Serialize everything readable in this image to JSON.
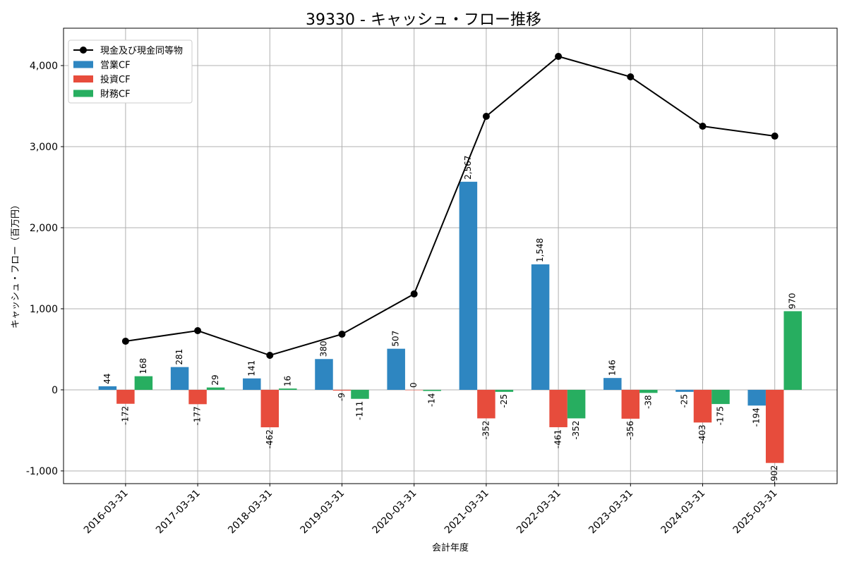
{
  "chart_data": {
    "type": "bar",
    "title": "39330 - キャッシュ・フロー推移",
    "xlabel": "会計年度",
    "ylabel": "キャッシュ・フロー（百万円）",
    "ylim": [
      -1157,
      4461
    ],
    "yticks": [
      -1000,
      0,
      1000,
      2000,
      3000,
      4000
    ],
    "ytick_labels": [
      "-1,000",
      "0",
      "1,000",
      "2,000",
      "3,000",
      "4,000"
    ],
    "grid": true,
    "legend_position": "top-left",
    "categories": [
      "2016-03-31",
      "2017-03-31",
      "2018-03-31",
      "2019-03-31",
      "2020-03-31",
      "2021-03-31",
      "2022-03-31",
      "2023-03-31",
      "2024-03-31",
      "2025-03-31"
    ],
    "series": [
      {
        "name": "営業CF",
        "type": "bar",
        "color": "#2e86c1",
        "values": [
          44,
          281,
          141,
          380,
          507,
          2567,
          1548,
          146,
          -25,
          -194
        ],
        "labels": [
          "44",
          "281",
          "141",
          "380",
          "507",
          "2,567",
          "1,548",
          "146",
          "-25",
          "-194"
        ]
      },
      {
        "name": "投資CF",
        "type": "bar",
        "color": "#e74c3c",
        "values": [
          -172,
          -177,
          -462,
          -9,
          0,
          -352,
          -461,
          -356,
          -403,
          -902
        ],
        "labels": [
          "-172",
          "-177",
          "-462",
          "-9",
          "0",
          "-352",
          "-461",
          "-356",
          "-403",
          "-902"
        ]
      },
      {
        "name": "財務CF",
        "type": "bar",
        "color": "#27ae60",
        "values": [
          168,
          29,
          16,
          -111,
          -14,
          -25,
          -352,
          -38,
          -175,
          970
        ],
        "labels": [
          "168",
          "29",
          "16",
          "-111",
          "-14",
          "-25",
          "-352",
          "-38",
          "-175",
          "970"
        ]
      },
      {
        "name": "現金及び現金同等物",
        "type": "line",
        "color": "#000000",
        "values": [
          600,
          730,
          426,
          687,
          1183,
          3374,
          4113,
          3861,
          3252,
          3130
        ]
      }
    ]
  }
}
